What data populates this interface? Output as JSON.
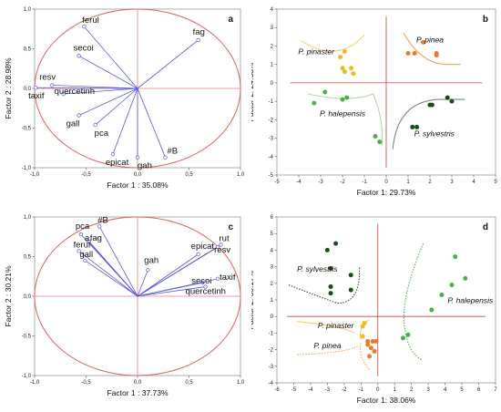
{
  "colors": {
    "circle": "#e06060",
    "loading": "#5a5ad8",
    "axis_line": "#e08080",
    "pinaster": "#f2b91e",
    "pinea": "#ec7a2a",
    "halepensis": "#4eae4a",
    "sylvestris": "#1a4d1a",
    "frame": "#9a9a9a"
  },
  "panels": [
    {
      "id": "a",
      "label": "a"
    },
    {
      "id": "b",
      "label": "b"
    },
    {
      "id": "c",
      "label": "c"
    },
    {
      "id": "d",
      "label": "d"
    }
  ],
  "chart_data": [
    {
      "panel": "a",
      "type": "scatter",
      "subtype": "loading-plot",
      "xlabel": "Factor 1 : 35.08%",
      "ylabel": "Factor 2 : 28.98%",
      "xlim": [
        -1.0,
        1.0
      ],
      "ylim": [
        -1.0,
        1.0
      ],
      "xticks": [
        "-1,0",
        "-0,5",
        "0,0",
        "0,5",
        "1,0"
      ],
      "yticks": [
        "1,0",
        "0,5",
        "0,0",
        "-0,5",
        "-1,0"
      ],
      "unit_circle": true,
      "vectors": [
        {
          "name": "ferul",
          "x": -0.52,
          "y": 0.78
        },
        {
          "name": "fag",
          "x": 0.59,
          "y": 0.61
        },
        {
          "name": "secoi",
          "x": -0.57,
          "y": 0.41
        },
        {
          "name": "resv",
          "x": -0.83,
          "y": 0.04
        },
        {
          "name": "taxif",
          "x": -0.99,
          "y": 0.01
        },
        {
          "name": "quercetinh",
          "x": -0.72,
          "y": -0.07
        },
        {
          "name": "gall",
          "x": -0.57,
          "y": -0.34
        },
        {
          "name": "pca",
          "x": -0.41,
          "y": -0.46
        },
        {
          "name": "epicat",
          "x": -0.24,
          "y": -0.83
        },
        {
          "name": "gah",
          "x": 0.0,
          "y": -0.87
        },
        {
          "name": "#B",
          "x": 0.27,
          "y": -0.87
        }
      ]
    },
    {
      "panel": "b",
      "type": "scatter",
      "xlabel": "Factor 1: 29.73%",
      "ylabel": "Factor 2: 24.58%",
      "xlim": [
        -5,
        5
      ],
      "ylim": [
        -5,
        4
      ],
      "xticks": [
        "-5",
        "-4",
        "-3",
        "-2",
        "-1",
        "0",
        "1",
        "2",
        "3",
        "4",
        "5"
      ],
      "yticks": [
        "4",
        "3",
        "2",
        "1",
        "0",
        "-1",
        "-2",
        "-3",
        "-4",
        "-5"
      ],
      "series": [
        {
          "name": "P. pinaster",
          "color_key": "pinaster",
          "points": [
            [
              -2.1,
              1.4
            ],
            [
              -1.9,
              1.7
            ],
            [
              -2.0,
              0.8
            ],
            [
              -1.6,
              0.8
            ],
            [
              -1.9,
              0.6
            ],
            [
              -1.5,
              0.5
            ]
          ]
        },
        {
          "name": "P. pinea",
          "color_key": "pinea",
          "points": [
            [
              1.0,
              1.6
            ],
            [
              1.3,
              1.6
            ],
            [
              2.3,
              1.5
            ],
            [
              2.3,
              1.6
            ],
            [
              1.7,
              2.2
            ]
          ]
        },
        {
          "name": "P. halepensis",
          "color_key": "halepensis",
          "points": [
            [
              -3.3,
              -1.1
            ],
            [
              -2.8,
              -0.5
            ],
            [
              -1.8,
              -0.8
            ],
            [
              -2.0,
              -0.9
            ],
            [
              -0.5,
              -2.9
            ],
            [
              -0.3,
              -3.2
            ]
          ]
        },
        {
          "name": "P. sylvestris",
          "color_key": "sylvestris",
          "points": [
            [
              2.0,
              -1.2
            ],
            [
              2.1,
              -1.2
            ],
            [
              2.8,
              -0.8
            ],
            [
              3.0,
              -1.0
            ],
            [
              1.2,
              -2.4
            ],
            [
              1.4,
              -2.4
            ]
          ]
        }
      ]
    },
    {
      "panel": "c",
      "type": "scatter",
      "subtype": "loading-plot",
      "xlabel": "Factor 1 : 37.73%",
      "ylabel": "Factor 2 : 30.21%",
      "xlim": [
        -1.0,
        1.0
      ],
      "ylim": [
        -1.0,
        1.0
      ],
      "xticks": [
        "-1,0",
        "-0,5",
        "0,0",
        "0,5",
        "1,0"
      ],
      "yticks": [
        "1,0",
        "0,5",
        "0,0",
        "-0,5",
        "-1,0"
      ],
      "unit_circle": true,
      "vectors": [
        {
          "name": "#B",
          "x": -0.37,
          "y": 0.88
        },
        {
          "name": "pca",
          "x": -0.55,
          "y": 0.78
        },
        {
          "name": "fag",
          "x": -0.48,
          "y": 0.69
        },
        {
          "name": "a",
          "x": -0.47,
          "y": 0.69
        },
        {
          "name": "ferul",
          "x": -0.57,
          "y": 0.57
        },
        {
          "name": "gall",
          "x": -0.51,
          "y": 0.45
        },
        {
          "name": "gah",
          "x": 0.1,
          "y": 0.33
        },
        {
          "name": "rut",
          "x": 0.81,
          "y": 0.65
        },
        {
          "name": "resv",
          "x": 0.78,
          "y": 0.62
        },
        {
          "name": "epicat",
          "x": 0.59,
          "y": 0.53
        },
        {
          "name": "secoi",
          "x": 0.63,
          "y": 0.17
        },
        {
          "name": "taxif",
          "x": 0.78,
          "y": 0.22
        },
        {
          "name": "quercetinh",
          "x": 0.66,
          "y": 0.12
        }
      ]
    },
    {
      "panel": "d",
      "type": "scatter",
      "xlabel": "Factor 1: 38.06%",
      "ylabel": "Factor 2: 30.17%",
      "xlim": [
        -6,
        7
      ],
      "ylim": [
        -4,
        6
      ],
      "xticks": [
        "-6",
        "-5",
        "-4",
        "-3",
        "-2",
        "-1",
        "0",
        "1",
        "2",
        "3",
        "4",
        "5",
        "6",
        "7"
      ],
      "yticks": [
        "6",
        "5",
        "4",
        "3",
        "2",
        "1",
        "0",
        "-1",
        "-2",
        "-3",
        "-4"
      ],
      "series": [
        {
          "name": "P. sylvestris",
          "color_key": "sylvestris",
          "points": [
            [
              -3.0,
              4.0
            ],
            [
              -2.5,
              4.4
            ],
            [
              -1.6,
              2.5
            ],
            [
              -2.8,
              2.9
            ],
            [
              -2.8,
              1.4
            ],
            [
              -2.8,
              1.8
            ],
            [
              -1.6,
              1.6
            ]
          ]
        },
        {
          "name": "P. halepensis",
          "color_key": "halepensis",
          "points": [
            [
              4.6,
              3.6
            ],
            [
              5.2,
              2.3
            ],
            [
              3.8,
              1.3
            ],
            [
              3.2,
              0.4
            ],
            [
              1.8,
              -1.1
            ],
            [
              1.5,
              -1.3
            ],
            [
              4.4,
              1.9
            ]
          ]
        },
        {
          "name": "P. pinaster",
          "color_key": "pinaster",
          "points": [
            [
              -0.9,
              -0.6
            ],
            [
              -0.8,
              -0.4
            ],
            [
              -0.9,
              -1.2
            ],
            [
              -0.6,
              -1.5
            ]
          ]
        },
        {
          "name": "P. pinea",
          "color_key": "pinea",
          "points": [
            [
              -0.6,
              -1.5
            ],
            [
              -0.3,
              -1.5
            ],
            [
              -0.1,
              -1.5
            ],
            [
              -0.4,
              -1.9
            ],
            [
              -0.5,
              -2.4
            ],
            [
              -0.2,
              -2.1
            ],
            [
              -0.6,
              -1.7
            ]
          ]
        }
      ]
    }
  ]
}
